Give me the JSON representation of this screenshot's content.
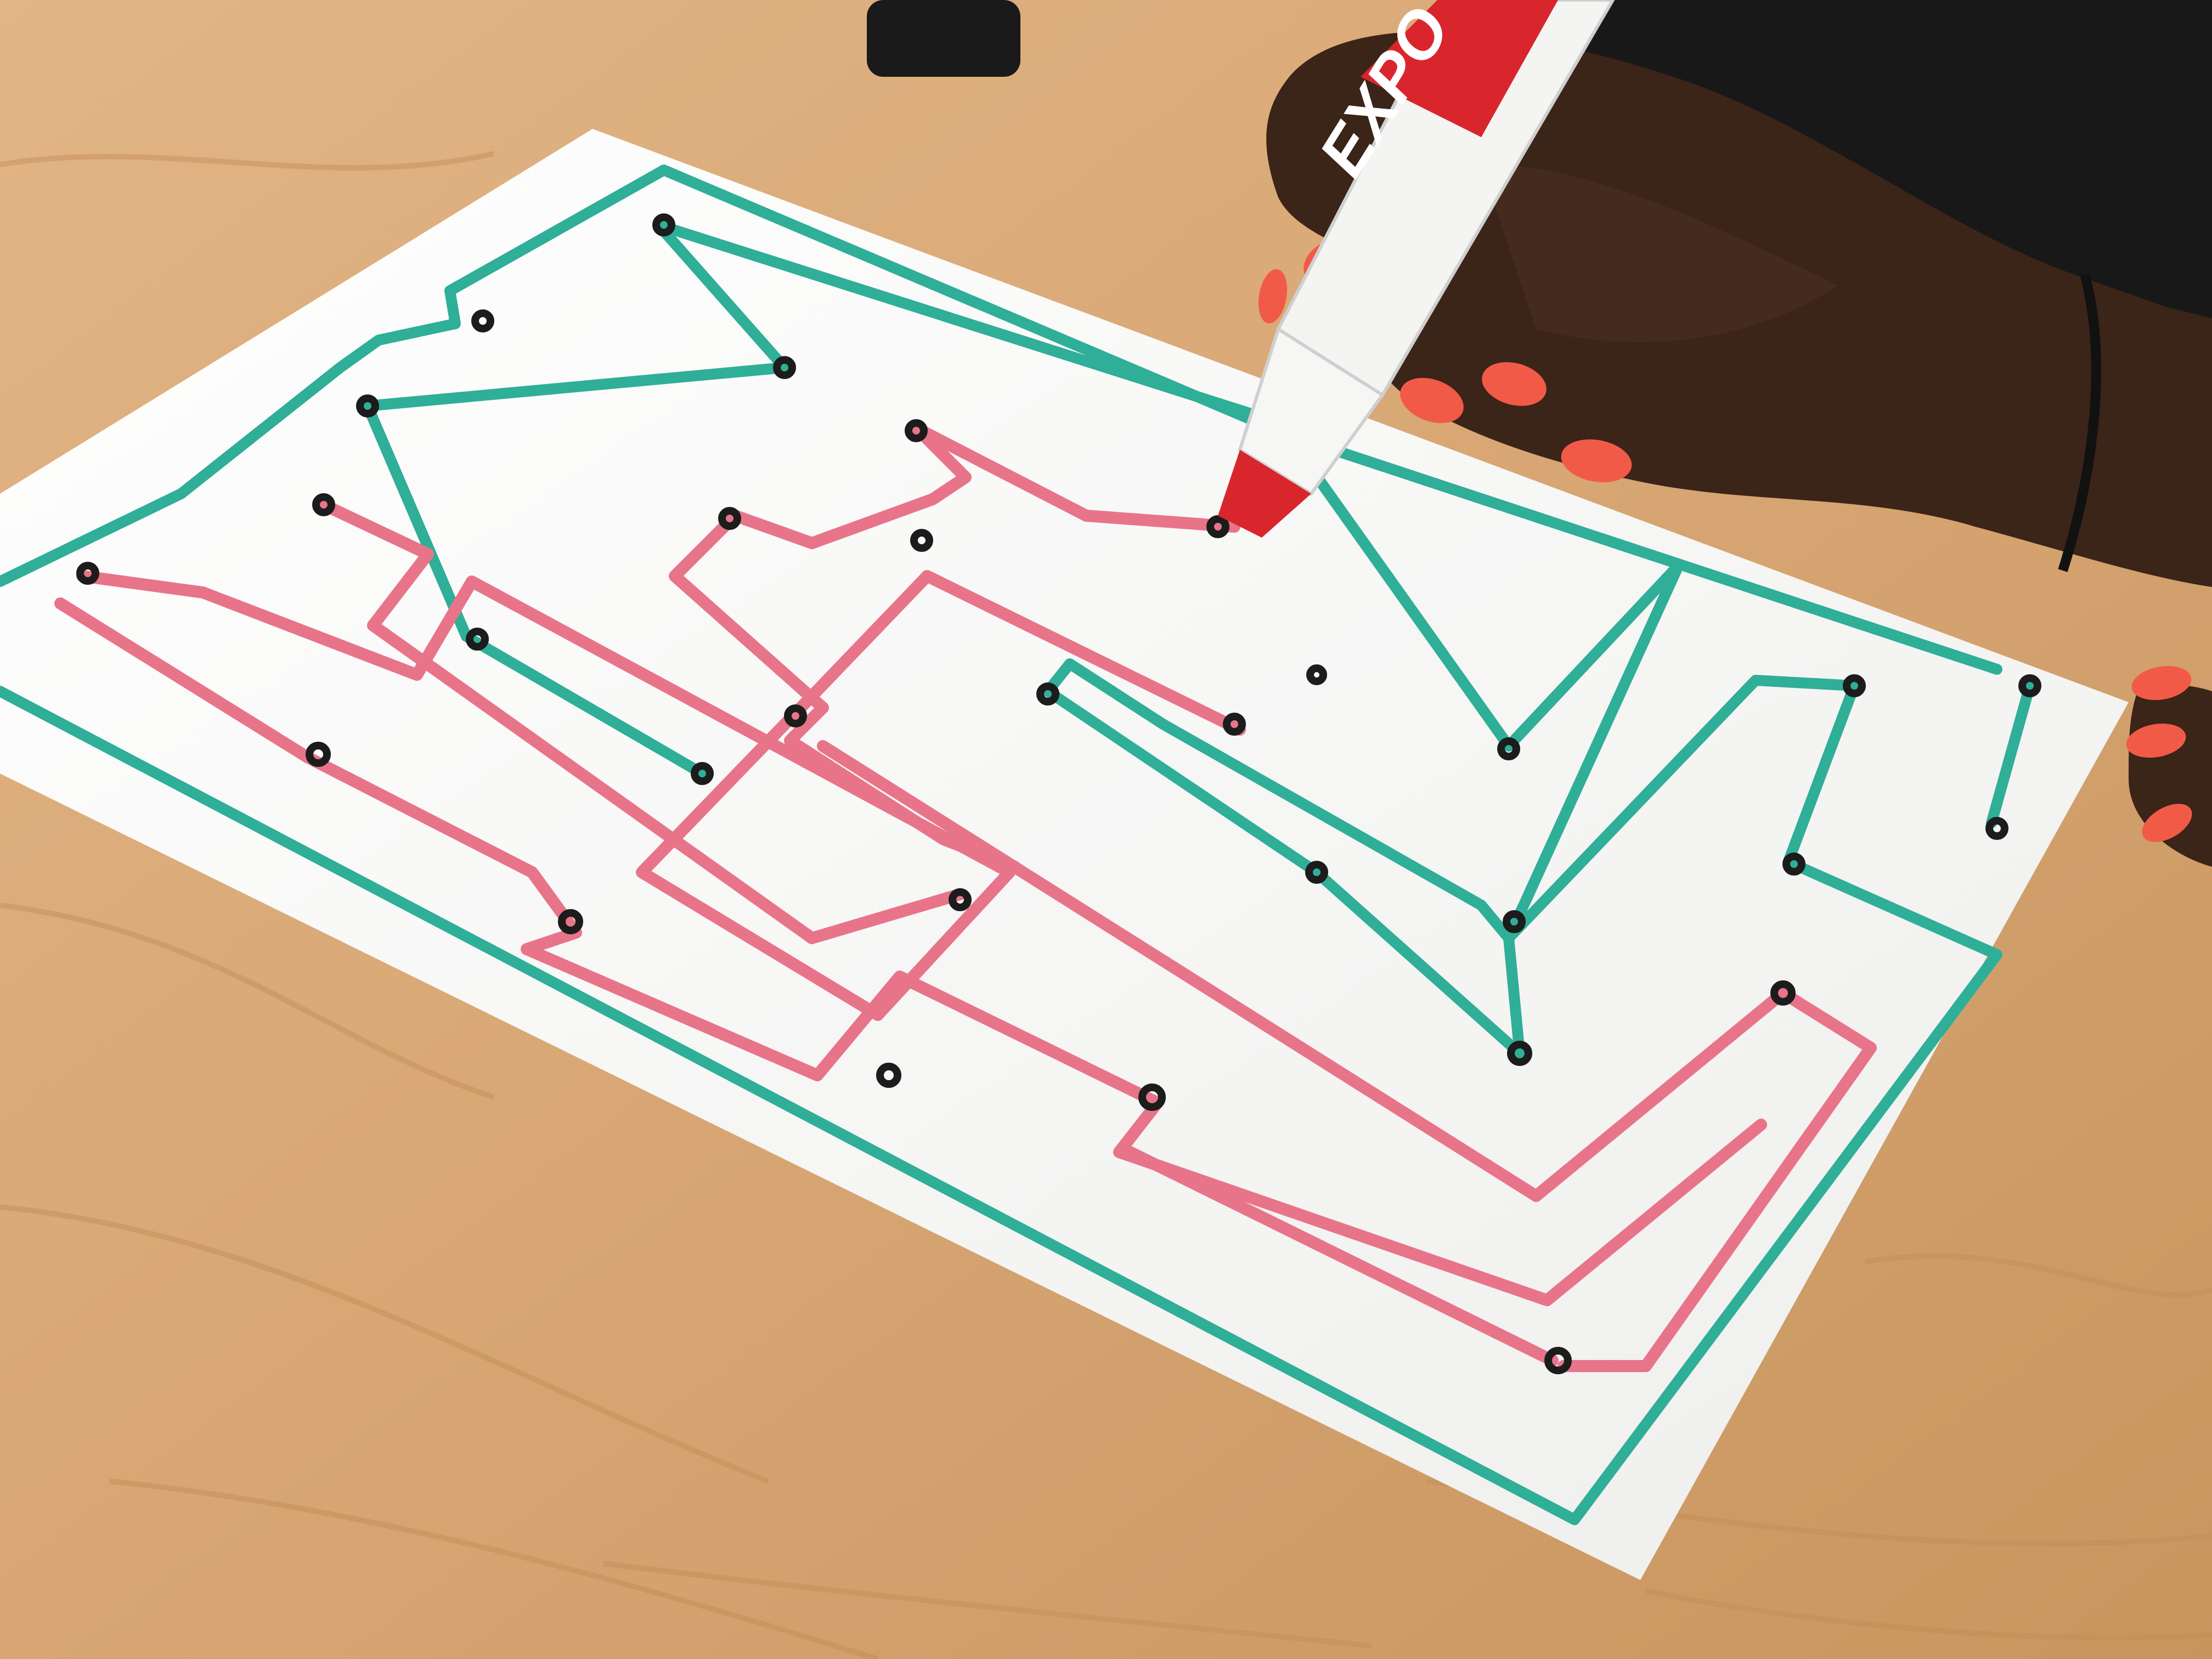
{
  "scene": {
    "colors": {
      "table": "#d9aa78",
      "table_grain": "#c8955f",
      "paper": "#fbfbf9",
      "teal_line": "#2fae98",
      "pink_line": "#e8748a",
      "dot": "#1c1c1c",
      "skin": "#3b2418",
      "nails": "#f25a48",
      "marker_body": "#f4f4f2",
      "marker_red": "#d8262c",
      "sleeve": "#181818"
    },
    "marker": {
      "brand": "EXPO",
      "icon_name": "expo-logo"
    },
    "maze": {
      "line_colors": [
        "teal",
        "pink"
      ],
      "node_style": "black ring dots"
    }
  }
}
